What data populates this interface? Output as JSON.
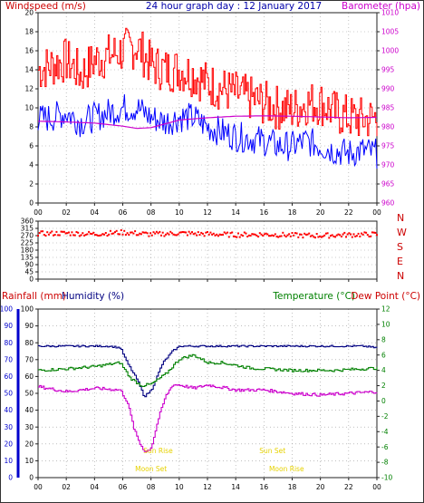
{
  "header": {
    "left_title": "Windspeed (m/s)",
    "center_title": "24 hour graph day : 12 January 2017",
    "right_title": "Barometer (hpa)"
  },
  "panel3_titles": {
    "rainfall": "Rainfall (mm)",
    "humidity": "Humidity (%)",
    "temperature": "Temperature (°C)",
    "dewpoint": "Dew Point (°C)"
  },
  "colors": {
    "windspeed": "#ff0000",
    "avg_wind": "#0000ff",
    "barometer": "#cc00cc",
    "direction": "#ff0000",
    "humidity": "#000080",
    "temperature": "#008000",
    "dewpoint": "#cc00cc",
    "rainfall": "#0000cc",
    "annotation": "#e6d200",
    "grid": "#999999"
  },
  "time_ticks": [
    "00",
    "02",
    "04",
    "06",
    "08",
    "10",
    "12",
    "14",
    "16",
    "18",
    "20",
    "22",
    "00"
  ],
  "annotations": [
    {
      "label": "Sun Rise",
      "hour": 8.5
    },
    {
      "label": "Sun Set",
      "hour": 16.6
    },
    {
      "label": "Moon Set",
      "hour": 8.0
    },
    {
      "label": "Moon Rise",
      "hour": 17.6
    }
  ],
  "chart_data": [
    {
      "type": "line",
      "name": "wind-and-pressure",
      "xlabel": "hour",
      "xlim": [
        0,
        24
      ],
      "ylabel": "Windspeed (m/s)",
      "ylim": [
        0,
        20
      ],
      "yticks": [
        0,
        2,
        4,
        6,
        8,
        10,
        12,
        14,
        16,
        18,
        20
      ],
      "y2label": "Barometer (hpa)",
      "y2lim": [
        960,
        1010
      ],
      "y2ticks": [
        960,
        965,
        970,
        975,
        980,
        985,
        990,
        995,
        1000,
        1005,
        1010
      ],
      "grid": true,
      "series": [
        {
          "color": "#ff0000",
          "axis": "left",
          "x": [
            0,
            1,
            2,
            3,
            4,
            5,
            6,
            7,
            8,
            9,
            10,
            11,
            12,
            13,
            14,
            15,
            16,
            17,
            18,
            19,
            20,
            21,
            22,
            23,
            24
          ],
          "values": [
            14,
            14.5,
            15,
            13.5,
            15,
            15.5,
            16,
            16.5,
            14.5,
            14,
            14,
            13.5,
            12.5,
            12,
            11.5,
            11,
            10.5,
            10,
            9.8,
            10.5,
            10.5,
            9.5,
            9,
            8.8,
            9
          ]
        },
        {
          "color": "#0000ff",
          "axis": "left",
          "x": [
            0,
            1,
            2,
            3,
            4,
            5,
            6,
            7,
            8,
            9,
            10,
            11,
            12,
            13,
            14,
            15,
            16,
            17,
            18,
            19,
            20,
            21,
            22,
            23,
            24
          ],
          "values": [
            8.8,
            9,
            9.5,
            8.5,
            9,
            9.5,
            10,
            10,
            9,
            8.5,
            9,
            9,
            8,
            7.5,
            7,
            6.8,
            6.5,
            6,
            6,
            6.5,
            6,
            5.5,
            5.2,
            5.5,
            5.2
          ]
        },
        {
          "color": "#cc00cc",
          "axis": "right",
          "x": [
            0,
            2,
            4,
            6,
            7,
            8,
            9,
            10,
            12,
            14,
            16,
            18,
            20,
            22,
            24
          ],
          "values": [
            981.5,
            981.3,
            981,
            980.2,
            979.6,
            979.8,
            980.8,
            981.8,
            982.4,
            982.8,
            982.9,
            982.8,
            982.6,
            982.4,
            982.5
          ]
        }
      ]
    },
    {
      "type": "scatter",
      "name": "wind-direction",
      "xlabel": "hour",
      "xlim": [
        0,
        24
      ],
      "ylim": [
        0,
        360
      ],
      "yticks": [
        0,
        45,
        90,
        135,
        180,
        225,
        270,
        315,
        360
      ],
      "compass_labels": [
        "N",
        "W",
        "S",
        "E",
        "N"
      ],
      "grid": true,
      "series": [
        {
          "color": "#ff0000",
          "x": [
            0,
            2,
            4,
            6,
            8,
            10,
            12,
            14,
            16,
            18,
            20,
            22,
            24
          ],
          "values": [
            282,
            285,
            280,
            290,
            278,
            285,
            280,
            275,
            278,
            272,
            270,
            275,
            278
          ]
        }
      ]
    },
    {
      "type": "line",
      "name": "humidity-temperature-dewpoint",
      "xlabel": "hour",
      "xlim": [
        0,
        24
      ],
      "ylabel": "Rainfall (mm)",
      "ylim": [
        0,
        100
      ],
      "yticks": [
        0,
        10,
        20,
        30,
        40,
        50,
        60,
        70,
        80,
        90,
        100
      ],
      "y2label": "Temperature (°C)",
      "y2lim": [
        -10,
        12
      ],
      "y2ticks": [
        -10,
        -8,
        -6,
        -4,
        -2,
        0,
        2,
        4,
        6,
        8,
        10,
        12
      ],
      "grid": true,
      "series": [
        {
          "color": "#000080",
          "axis": "left",
          "x": [
            0,
            3,
            5,
            5.8,
            6.3,
            7,
            7.5,
            8,
            8.8,
            9.5,
            10,
            12,
            15,
            18,
            21,
            23,
            24
          ],
          "values": [
            78,
            78,
            78,
            77,
            68,
            58,
            48,
            52,
            68,
            75,
            78,
            78,
            78,
            78,
            78,
            78,
            77
          ]
        },
        {
          "color": "#008000",
          "axis": "right",
          "x": [
            0,
            2,
            4,
            5.8,
            6.5,
            7.3,
            8,
            9,
            10,
            11,
            12,
            13,
            15,
            18,
            21,
            23,
            24
          ],
          "values": [
            4,
            4.2,
            4.5,
            5,
            3,
            2,
            2.2,
            3.5,
            5.5,
            6,
            5,
            5,
            4.3,
            4,
            4,
            4.2,
            4.3
          ]
        },
        {
          "color": "#cc00cc",
          "axis": "left",
          "x": [
            0,
            2,
            4,
            5.8,
            6.3,
            6.8,
            7.2,
            7.6,
            8,
            8.5,
            9,
            9.5,
            10,
            11,
            12,
            14,
            16,
            18,
            20,
            22,
            24
          ],
          "values": [
            54,
            51,
            53,
            52,
            45,
            28,
            20,
            15,
            18,
            35,
            48,
            55,
            55,
            53,
            55,
            52,
            52,
            50,
            49,
            50,
            51
          ]
        }
      ]
    }
  ]
}
